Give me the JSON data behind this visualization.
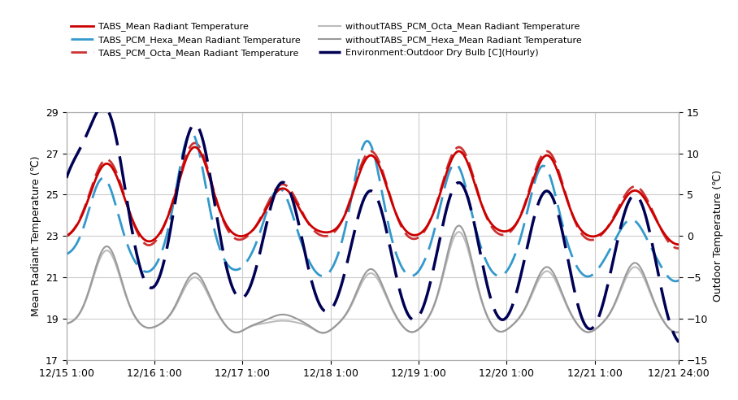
{
  "ylabel_left": "Mean Radiant Temperature (℃)",
  "ylabel_right": "Outdoor Temperature (℃)",
  "ylim_left": [
    17,
    29
  ],
  "ylim_right": [
    -15,
    15
  ],
  "yticks_left": [
    17,
    19,
    21,
    23,
    25,
    27,
    29
  ],
  "yticks_right": [
    -15,
    -10,
    -5,
    0,
    5,
    10,
    15
  ],
  "xtick_labels": [
    "12/15 1:00",
    "12/16 1:00",
    "12/17 1:00",
    "12/18 1:00",
    "12/19 1:00",
    "12/20 1:00",
    "12/21 1:00",
    "12/21 24:00"
  ],
  "xtick_positions": [
    0,
    24,
    48,
    72,
    96,
    120,
    144,
    167
  ],
  "xlim": [
    0,
    167
  ],
  "background_color": "#ffffff",
  "grid_color": "#cccccc",
  "tabs_color": "#cc0000",
  "tabs_pcm_hexa_color": "#3399cc",
  "tabs_pcm_octa_color": "#cc3333",
  "without_octa_color": "#bbbbbb",
  "without_hexa_color": "#999999",
  "outdoor_color": "#000055",
  "legend_labels": [
    "TABS_Mean Radiant Temperature",
    "TABS_PCM_Hexa_Mean Radiant Temperature",
    "TABS_PCM_Octa_Mean Radiant Temperature",
    "withoutTABS_PCM_Octa_Mean Radiant Temperature",
    "withoutTABS_PCM_Hexa_Mean Radiant Temperature",
    "Environment:Outdoor Dry Bulb [C](Hourly)"
  ]
}
